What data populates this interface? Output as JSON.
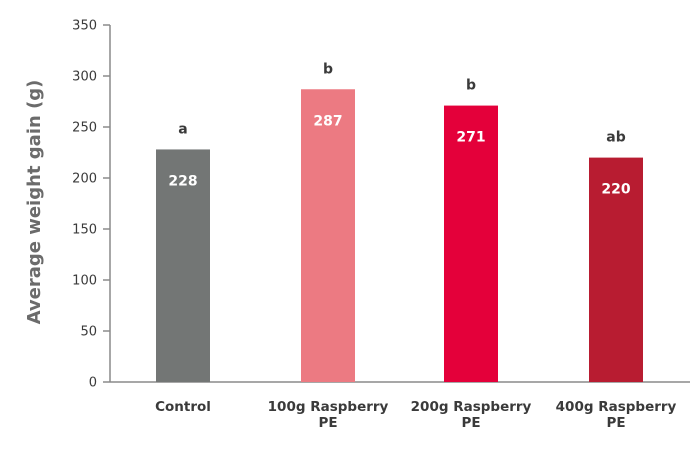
{
  "chart_data": {
    "type": "bar",
    "title": "",
    "xlabel": "",
    "ylabel": "Average weight gain (g)",
    "ylim": [
      0,
      350
    ],
    "yticks": [
      0,
      50,
      100,
      150,
      200,
      250,
      300,
      350
    ],
    "grid": false,
    "legend": "none",
    "categories": [
      [
        "Control"
      ],
      [
        "100g Raspberry",
        "PE"
      ],
      [
        "200g Raspberry",
        "PE"
      ],
      [
        "400g Raspberry",
        "PE"
      ]
    ],
    "values": [
      228,
      287,
      271,
      220
    ],
    "value_labels": [
      "228",
      "287",
      "271",
      "220"
    ],
    "significance_letters": [
      "a",
      "b",
      "b",
      "ab"
    ],
    "bar_colors": [
      "#737675",
      "#ec7a82",
      "#e4003a",
      "#b81c31"
    ],
    "axis_color": "#8a8a8a"
  }
}
